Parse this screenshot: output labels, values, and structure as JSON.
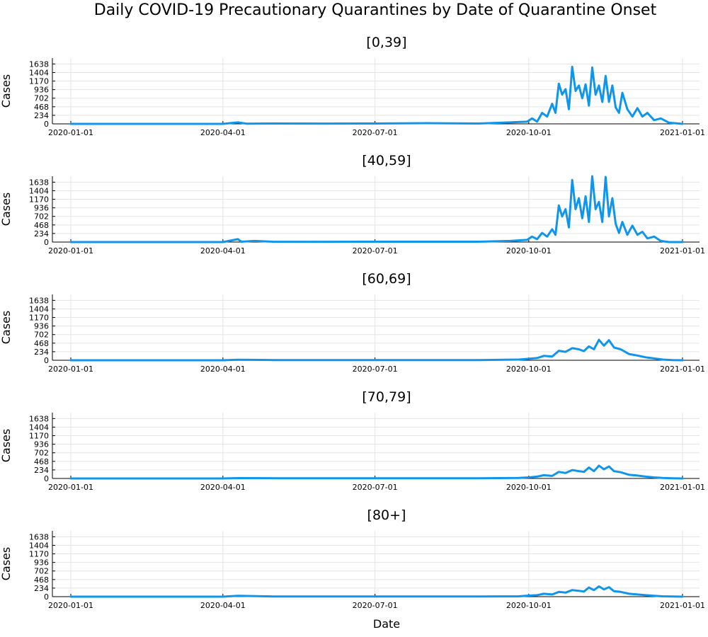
{
  "title": "Daily COVID-19 Precautionary Quarantines by Date of Quarantine Onset",
  "colors": {
    "line": "#0f96ec",
    "axis": "#000000",
    "grid": "#e5e5e5"
  },
  "chart_data": [
    {
      "type": "line",
      "title": "[0,39]",
      "ylabel": "Cases",
      "xlabel": "",
      "ylim": [
        0,
        1800
      ],
      "yticks": [
        0,
        234,
        468,
        702,
        936,
        1170,
        1404,
        1638
      ],
      "xlim": [
        "2020-01-01",
        "2021-01-01"
      ],
      "xticks": [
        "2020-01-01",
        "2020-04-01",
        "2020-07-01",
        "2020-10-01",
        "2021-01-01"
      ],
      "grid": true,
      "series": [
        {
          "x": [
            "2020-01-01",
            "2020-03-01",
            "2020-04-01",
            "2020-04-10",
            "2020-04-15",
            "2020-05-01",
            "2020-06-01",
            "2020-07-01",
            "2020-08-01",
            "2020-09-01",
            "2020-09-20",
            "2020-09-30",
            "2020-10-03",
            "2020-10-06",
            "2020-10-09",
            "2020-10-12",
            "2020-10-15",
            "2020-10-17",
            "2020-10-19",
            "2020-10-21",
            "2020-10-23",
            "2020-10-25",
            "2020-10-27",
            "2020-10-29",
            "2020-10-31",
            "2020-11-02",
            "2020-11-04",
            "2020-11-06",
            "2020-11-08",
            "2020-11-10",
            "2020-11-12",
            "2020-11-14",
            "2020-11-16",
            "2020-11-18",
            "2020-11-20",
            "2020-11-22",
            "2020-11-24",
            "2020-11-26",
            "2020-11-29",
            "2020-12-02",
            "2020-12-05",
            "2020-12-08",
            "2020-12-11",
            "2020-12-15",
            "2020-12-19",
            "2020-12-24",
            "2021-01-01"
          ],
          "y": [
            0,
            0,
            0,
            40,
            5,
            10,
            8,
            10,
            20,
            10,
            40,
            60,
            150,
            60,
            300,
            200,
            550,
            300,
            1100,
            800,
            950,
            400,
            1560,
            900,
            1050,
            700,
            1080,
            500,
            1540,
            800,
            1050,
            600,
            1310,
            600,
            1050,
            450,
            300,
            850,
            400,
            200,
            430,
            200,
            300,
            100,
            150,
            30,
            0
          ]
        }
      ]
    },
    {
      "type": "line",
      "title": "[40,59]",
      "ylabel": "Cases",
      "xlabel": "",
      "ylim": [
        0,
        1800
      ],
      "yticks": [
        0,
        234,
        468,
        702,
        936,
        1170,
        1404,
        1638
      ],
      "xlim": [
        "2020-01-01",
        "2021-01-01"
      ],
      "xticks": [
        "2020-01-01",
        "2020-04-01",
        "2020-07-01",
        "2020-10-01",
        "2021-01-01"
      ],
      "grid": true,
      "series": [
        {
          "x": [
            "2020-01-01",
            "2020-03-01",
            "2020-04-01",
            "2020-04-10",
            "2020-04-12",
            "2020-04-20",
            "2020-05-01",
            "2020-06-01",
            "2020-07-01",
            "2020-08-01",
            "2020-09-01",
            "2020-09-20",
            "2020-09-30",
            "2020-10-03",
            "2020-10-06",
            "2020-10-09",
            "2020-10-12",
            "2020-10-15",
            "2020-10-17",
            "2020-10-19",
            "2020-10-21",
            "2020-10-23",
            "2020-10-25",
            "2020-10-27",
            "2020-10-29",
            "2020-10-31",
            "2020-11-02",
            "2020-11-04",
            "2020-11-06",
            "2020-11-08",
            "2020-11-10",
            "2020-11-12",
            "2020-11-14",
            "2020-11-16",
            "2020-11-18",
            "2020-11-20",
            "2020-11-22",
            "2020-11-24",
            "2020-11-26",
            "2020-11-29",
            "2020-12-02",
            "2020-12-05",
            "2020-12-08",
            "2020-12-11",
            "2020-12-15",
            "2020-12-19",
            "2020-12-24",
            "2021-01-01"
          ],
          "y": [
            0,
            0,
            0,
            80,
            10,
            30,
            10,
            8,
            10,
            10,
            10,
            30,
            60,
            150,
            80,
            250,
            150,
            350,
            200,
            1000,
            700,
            900,
            400,
            1700,
            900,
            1200,
            650,
            1250,
            550,
            1800,
            900,
            1100,
            550,
            1780,
            700,
            1200,
            500,
            250,
            550,
            200,
            450,
            200,
            280,
            100,
            150,
            30,
            0,
            0
          ]
        }
      ]
    },
    {
      "type": "line",
      "title": "[60,69]",
      "ylabel": "Cases",
      "xlabel": "",
      "ylim": [
        0,
        1800
      ],
      "yticks": [
        0,
        234,
        468,
        702,
        936,
        1170,
        1404,
        1638
      ],
      "xlim": [
        "2020-01-01",
        "2021-01-01"
      ],
      "xticks": [
        "2020-01-01",
        "2020-04-01",
        "2020-07-01",
        "2020-10-01",
        "2021-01-01"
      ],
      "grid": true,
      "series": [
        {
          "x": [
            "2020-01-01",
            "2020-04-01",
            "2020-04-10",
            "2020-05-01",
            "2020-07-01",
            "2020-09-01",
            "2020-09-25",
            "2020-10-01",
            "2020-10-06",
            "2020-10-10",
            "2020-10-15",
            "2020-10-19",
            "2020-10-23",
            "2020-10-27",
            "2020-10-31",
            "2020-11-03",
            "2020-11-06",
            "2020-11-09",
            "2020-11-12",
            "2020-11-15",
            "2020-11-18",
            "2020-11-21",
            "2020-11-25",
            "2020-11-30",
            "2020-12-05",
            "2020-12-10",
            "2020-12-15",
            "2020-12-20",
            "2020-12-26",
            "2021-01-01"
          ],
          "y": [
            0,
            0,
            15,
            5,
            5,
            5,
            20,
            40,
            60,
            120,
            100,
            260,
            230,
            330,
            300,
            250,
            380,
            300,
            560,
            400,
            550,
            350,
            300,
            170,
            130,
            80,
            50,
            20,
            5,
            0
          ]
        }
      ]
    },
    {
      "type": "line",
      "title": "[70,79]",
      "ylabel": "Cases",
      "xlabel": "",
      "ylim": [
        0,
        1800
      ],
      "yticks": [
        0,
        234,
        468,
        702,
        936,
        1170,
        1404,
        1638
      ],
      "xlim": [
        "2020-01-01",
        "2021-01-01"
      ],
      "xticks": [
        "2020-01-01",
        "2020-04-01",
        "2020-07-01",
        "2020-10-01",
        "2021-01-01"
      ],
      "grid": true,
      "series": [
        {
          "x": [
            "2020-01-01",
            "2020-04-01",
            "2020-04-10",
            "2020-05-01",
            "2020-07-01",
            "2020-09-01",
            "2020-09-25",
            "2020-10-01",
            "2020-10-06",
            "2020-10-10",
            "2020-10-15",
            "2020-10-19",
            "2020-10-23",
            "2020-10-27",
            "2020-10-31",
            "2020-11-03",
            "2020-11-06",
            "2020-11-09",
            "2020-11-12",
            "2020-11-15",
            "2020-11-18",
            "2020-11-21",
            "2020-11-25",
            "2020-11-30",
            "2020-12-05",
            "2020-12-10",
            "2020-12-15",
            "2020-12-20",
            "2020-12-26",
            "2021-01-01"
          ],
          "y": [
            0,
            0,
            10,
            5,
            5,
            5,
            15,
            30,
            50,
            90,
            70,
            180,
            150,
            230,
            200,
            180,
            300,
            200,
            350,
            250,
            330,
            200,
            170,
            100,
            80,
            50,
            30,
            15,
            5,
            0
          ]
        }
      ]
    },
    {
      "type": "line",
      "title": "[80+]",
      "ylabel": "Cases",
      "xlabel": "Date",
      "ylim": [
        0,
        1800
      ],
      "yticks": [
        0,
        234,
        468,
        702,
        936,
        1170,
        1404,
        1638
      ],
      "xlim": [
        "2020-01-01",
        "2021-01-01"
      ],
      "xticks": [
        "2020-01-01",
        "2020-04-01",
        "2020-07-01",
        "2020-10-01",
        "2021-01-01"
      ],
      "grid": true,
      "series": [
        {
          "x": [
            "2020-01-01",
            "2020-04-01",
            "2020-04-10",
            "2020-05-01",
            "2020-07-01",
            "2020-09-01",
            "2020-09-25",
            "2020-10-01",
            "2020-10-06",
            "2020-10-10",
            "2020-10-15",
            "2020-10-19",
            "2020-10-23",
            "2020-10-27",
            "2020-10-31",
            "2020-11-03",
            "2020-11-06",
            "2020-11-09",
            "2020-11-12",
            "2020-11-15",
            "2020-11-18",
            "2020-11-21",
            "2020-11-25",
            "2020-11-30",
            "2020-12-05",
            "2020-12-10",
            "2020-12-15",
            "2020-12-20",
            "2020-12-26",
            "2021-01-01"
          ],
          "y": [
            0,
            0,
            25,
            5,
            5,
            5,
            10,
            30,
            40,
            80,
            60,
            130,
            110,
            180,
            160,
            140,
            250,
            180,
            280,
            200,
            260,
            150,
            130,
            80,
            60,
            40,
            25,
            10,
            5,
            0
          ]
        }
      ]
    }
  ]
}
